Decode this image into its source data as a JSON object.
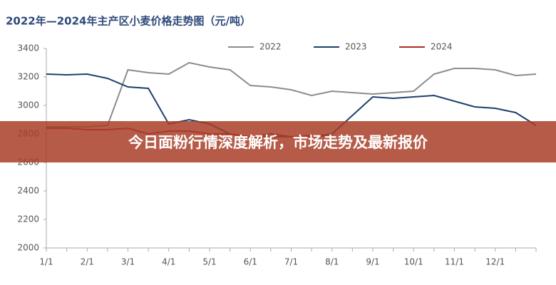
{
  "chart_data": {
    "type": "line",
    "title": "2022年—2024年主产区小麦价格走势图（元/吨）",
    "categories": [
      "1/1",
      null,
      "2/1",
      null,
      "3/1",
      null,
      "4/1",
      null,
      "5/1",
      null,
      "6/1",
      null,
      "7/1",
      null,
      "8/1",
      null,
      "9/1",
      null,
      "10/1",
      null,
      "11/1",
      null,
      "12/1",
      null,
      null
    ],
    "series": [
      {
        "name": "2022",
        "color": "#8c8c8c",
        "values": [
          2850,
          2850,
          2850,
          2860,
          3250,
          3230,
          3220,
          3300,
          3270,
          3250,
          3140,
          3130,
          3110,
          3070,
          3100,
          3090,
          3080,
          3090,
          3100,
          3220,
          3260,
          3260,
          3250,
          3210,
          3220
        ]
      },
      {
        "name": "2023",
        "color": "#1f3f6e",
        "values": [
          3220,
          3215,
          3220,
          3190,
          3130,
          3120,
          2870,
          2900,
          2870,
          2800,
          2780,
          2800,
          2780,
          2780,
          2800,
          2930,
          3060,
          3050,
          3060,
          3070,
          3030,
          2990,
          2980,
          2950,
          2860
        ]
      },
      {
        "name": "2024",
        "color": "#b02a22",
        "values": [
          2840,
          2840,
          2830,
          2830,
          2840,
          2800,
          2820,
          2820,
          2800,
          2800,
          2780,
          2780,
          2780,
          2790,
          2780,
          null,
          null,
          null,
          null,
          null,
          null,
          null,
          null,
          null,
          null
        ]
      }
    ],
    "ylim": [
      2000,
      3400
    ],
    "yticks": [
      2000,
      2200,
      2400,
      2600,
      2800,
      3000,
      3200,
      3400
    ],
    "banner": "今日面粉行情深度解析，市场走势及最新报价"
  }
}
